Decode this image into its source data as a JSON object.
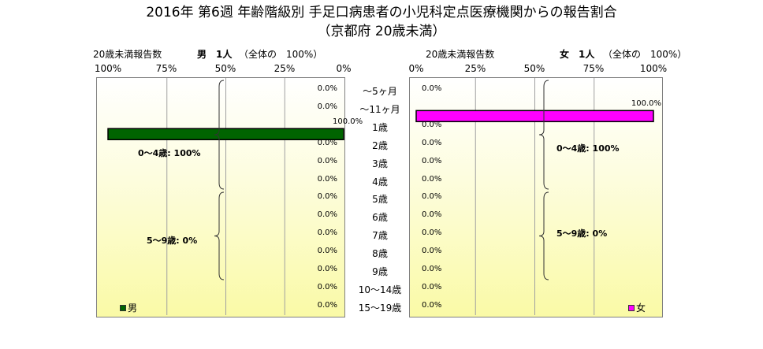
{
  "title_line1": "2016年 第6週 年齢階級別 手足口病患者の小児科定点医療機関からの報告割合",
  "title_line2": "（京都府 20歳未満）",
  "chart_data": {
    "type": "bar",
    "categories": [
      "～5ヶ月",
      "～11ヶ月",
      "1歳",
      "2歳",
      "3歳",
      "4歳",
      "5歳",
      "6歳",
      "7歳",
      "8歳",
      "9歳",
      "10～14歳",
      "15～19歳"
    ],
    "panels": [
      {
        "side": "left",
        "header_left": "20歳未満報告数",
        "header_sex": "男　1人",
        "header_share": "（全体の　100%）",
        "ticks": [
          "100%",
          "75%",
          "50%",
          "25%",
          "0%"
        ],
        "xlim": [
          0,
          100
        ],
        "direction": "right-to-left",
        "series": [
          {
            "name": "男",
            "color": "#006400",
            "values": [
              0,
              0,
              100,
              0,
              0,
              0,
              0,
              0,
              0,
              0,
              0,
              0,
              0
            ]
          }
        ],
        "value_labels": [
          "0.0%",
          "0.0%",
          "100.0%",
          "0.0%",
          "0.0%",
          "0.0%",
          "0.0%",
          "0.0%",
          "0.0%",
          "0.0%",
          "0.0%",
          "0.0%",
          "0.0%"
        ],
        "brace_labels": [
          "0～4歳: 100%",
          "5～9歳: 0%"
        ]
      },
      {
        "side": "right",
        "header_left": "20歳未満報告数",
        "header_sex": "女　1人",
        "header_share": "（全体の　100%）",
        "ticks": [
          "0%",
          "25%",
          "50%",
          "75%",
          "100%"
        ],
        "xlim": [
          0,
          100
        ],
        "direction": "left-to-right",
        "series": [
          {
            "name": "女",
            "color": "#ff00ff",
            "values": [
              0,
              100,
              0,
              0,
              0,
              0,
              0,
              0,
              0,
              0,
              0,
              0,
              0
            ]
          }
        ],
        "value_labels": [
          "0.0%",
          "100.0%",
          "0.0%",
          "0.0%",
          "0.0%",
          "0.0%",
          "0.0%",
          "0.0%",
          "0.0%",
          "0.0%",
          "0.0%",
          "0.0%",
          "0.0%"
        ],
        "brace_labels": [
          "0～4歳: 100%",
          "5～9歳: 0%"
        ]
      }
    ]
  }
}
